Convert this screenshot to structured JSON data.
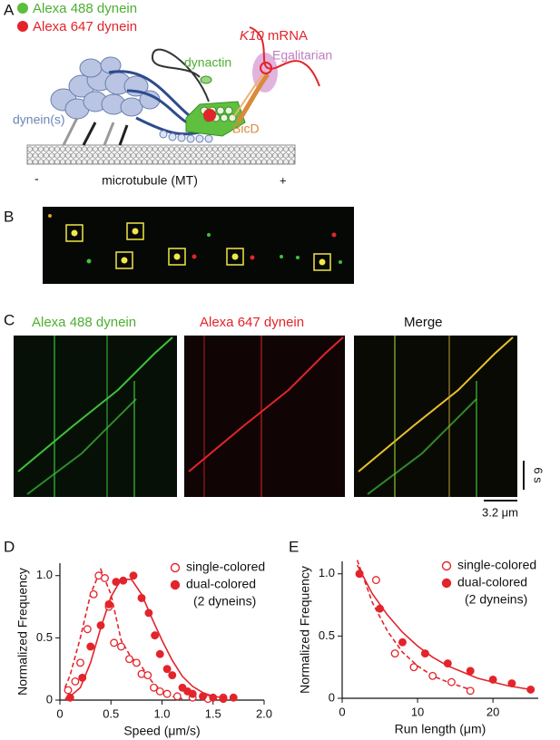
{
  "panel_labels": [
    "A",
    "B",
    "C",
    "D",
    "E"
  ],
  "panel_a": {
    "legend": [
      "Alexa 488 dynein",
      "Alexa 647 dynein"
    ],
    "dynactin": "dynactin",
    "mrna_gene": "K10",
    "mrna": "mRNA",
    "egalitarian": "Egalitarian",
    "bicd": "BicD",
    "dynein": "dynein(s)",
    "minus": "-",
    "microtubule": "microtubule (MT)",
    "plus": "+"
  },
  "panel_c": {
    "titles": [
      "Alexa 488 dynein",
      "Alexa 647 dynein",
      "Merge"
    ],
    "time_scale": "6 s",
    "length_scale": "3.2 μm"
  },
  "chart_data": [
    {
      "type": "scatter",
      "xlabel": "Speed (μm/s)",
      "ylabel": "Normalized Frequency",
      "xlim": [
        0,
        2
      ],
      "ylim": [
        0,
        1.1
      ],
      "xticks": [
        0,
        0.5,
        {
          "value": 1,
          "label": "1.0"
        },
        1.5,
        {
          "value": 2,
          "label": "2.0"
        }
      ],
      "yticks": [
        0,
        0.5,
        {
          "value": 1,
          "label": "1.0"
        }
      ],
      "series": [
        {
          "name": "single-colored",
          "marker": "open",
          "color": "#e3242b",
          "x": [
            0.08,
            0.15,
            0.2,
            0.27,
            0.33,
            0.38,
            0.44,
            0.48,
            0.53,
            0.6,
            0.68,
            0.75,
            0.8,
            0.86,
            0.92,
            0.98,
            1.05,
            1.15,
            1.3,
            1.45,
            1.6
          ],
          "values": [
            0.08,
            0.15,
            0.3,
            0.57,
            0.85,
            1.0,
            0.98,
            0.75,
            0.46,
            0.43,
            0.33,
            0.3,
            0.21,
            0.2,
            0.1,
            0.07,
            0.05,
            0.03,
            0.02,
            0.01,
            0.02
          ]
        },
        {
          "name": "dual-colored",
          "marker": "filled",
          "color": "#e3242b",
          "x": [
            0.1,
            0.22,
            0.3,
            0.4,
            0.48,
            0.55,
            0.62,
            0.72,
            0.8,
            0.87,
            0.93,
            0.98,
            1.05,
            1.1,
            1.2,
            1.25,
            1.3,
            1.4,
            1.5,
            1.6,
            1.7
          ],
          "values": [
            0.02,
            0.18,
            0.43,
            0.6,
            0.77,
            0.95,
            0.96,
            1.0,
            0.82,
            0.7,
            0.52,
            0.37,
            0.25,
            0.2,
            0.1,
            0.07,
            0.05,
            0.03,
            0.02,
            0.01,
            0.02
          ]
        }
      ],
      "legend_note": "(2 dyneins)",
      "fits": [
        {
          "line": "dashed",
          "color": "#e3242b",
          "x": [
            0.05,
            0.1,
            0.2,
            0.3,
            0.4,
            0.5,
            0.6,
            0.7,
            0.8,
            0.9,
            1.0,
            1.1,
            1.2
          ],
          "values": [
            0.1,
            0.2,
            0.5,
            0.85,
            1.05,
            0.85,
            0.48,
            0.34,
            0.27,
            0.15,
            0.07,
            0.03,
            0.01
          ]
        },
        {
          "line": "solid",
          "color": "#e3242b",
          "x": [
            0.05,
            0.1,
            0.2,
            0.3,
            0.4,
            0.5,
            0.6,
            0.7,
            0.8,
            0.9,
            1.0,
            1.1,
            1.2,
            1.3,
            1.4,
            1.5,
            1.6
          ],
          "values": [
            0.01,
            0.03,
            0.1,
            0.3,
            0.58,
            0.83,
            0.97,
            0.97,
            0.85,
            0.66,
            0.48,
            0.32,
            0.19,
            0.11,
            0.06,
            0.03,
            0.02
          ]
        }
      ]
    },
    {
      "type": "scatter",
      "xlabel": "Run length (μm)",
      "ylabel": "Normalized Frequency",
      "xlim": [
        0,
        26
      ],
      "ylim": [
        0,
        1.1
      ],
      "xticks": [
        0,
        10,
        20
      ],
      "yticks": [
        0,
        0.5,
        {
          "value": 1,
          "label": "1.0"
        }
      ],
      "series": [
        {
          "name": "single-colored",
          "marker": "open",
          "color": "#e3242b",
          "x": [
            2.3,
            4.5,
            7,
            9.5,
            12,
            14.5,
            17
          ],
          "values": [
            1.0,
            0.95,
            0.36,
            0.25,
            0.18,
            0.13,
            0.06
          ]
        },
        {
          "name": "dual-colored",
          "marker": "filled",
          "color": "#e3242b",
          "x": [
            2.3,
            5,
            8,
            11,
            14,
            17,
            20,
            22.5,
            25
          ],
          "values": [
            1.0,
            0.72,
            0.45,
            0.36,
            0.28,
            0.22,
            0.15,
            0.12,
            0.07
          ]
        }
      ],
      "legend_note": "(2 dyneins)",
      "fits": [
        {
          "line": "dashed",
          "color": "#e3242b",
          "x": [
            2,
            4,
            6,
            8,
            10,
            12,
            14,
            16,
            17
          ],
          "values": [
            1.11,
            0.77,
            0.54,
            0.37,
            0.26,
            0.18,
            0.13,
            0.09,
            0.07
          ]
        },
        {
          "line": "solid",
          "color": "#e3242b",
          "x": [
            2,
            4,
            6,
            8,
            10,
            12,
            14,
            16,
            18,
            20,
            22,
            24,
            25
          ],
          "values": [
            1.07,
            0.84,
            0.67,
            0.53,
            0.42,
            0.33,
            0.26,
            0.21,
            0.16,
            0.13,
            0.1,
            0.08,
            0.07
          ]
        }
      ]
    }
  ]
}
